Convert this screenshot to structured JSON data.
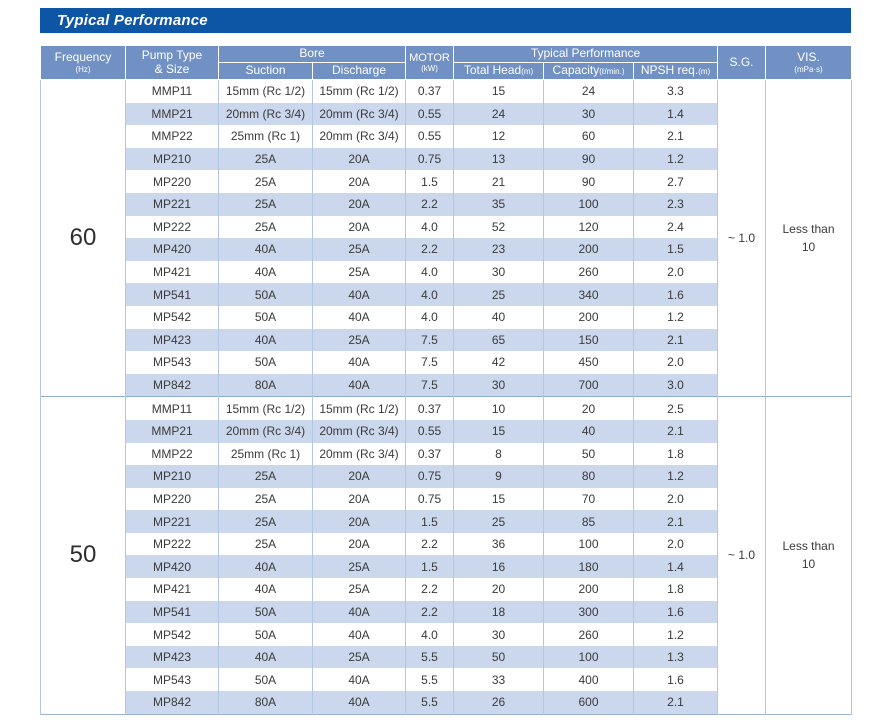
{
  "title": "Typical Performance",
  "colors": {
    "title_bar": "#0d55a5",
    "header_blue": "#7191c4",
    "alt_row": "#cbd7ec",
    "border": "#b3c6e2",
    "text": "#3a3a3a"
  },
  "table": {
    "headers": {
      "frequency": "Frequency",
      "frequency_unit": "(Hz)",
      "pump_type_line1": "Pump Type",
      "pump_type_line2": "& Size",
      "bore": "Bore",
      "suction": "Suction",
      "discharge": "Discharge",
      "motor": "MOTOR",
      "motor_unit": "(kW)",
      "typical_performance": "Typical Performance",
      "total_head": "Total Head",
      "total_head_unit": "(m)",
      "capacity": "Capacity",
      "capacity_unit": "(ℓ/min.)",
      "npsh": "NPSH req.",
      "npsh_unit": "(m)",
      "sg": "S.G.",
      "vis": "VIS.",
      "vis_unit": "(mPa·s)"
    },
    "sections": [
      {
        "frequency": "60",
        "sg": "~ 1.0",
        "vis_line1": "Less than",
        "vis_line2": "10",
        "rows": [
          [
            "MMP11",
            "15mm (Rc 1/2)",
            "15mm (Rc 1/2)",
            "0.37",
            "15",
            "24",
            "3.3"
          ],
          [
            "MMP21",
            "20mm (Rc 3/4)",
            "20mm (Rc 3/4)",
            "0.55",
            "24",
            "30",
            "1.4"
          ],
          [
            "MMP22",
            "25mm (Rc 1)",
            "20mm (Rc 3/4)",
            "0.55",
            "12",
            "60",
            "2.1"
          ],
          [
            "MP210",
            "25A",
            "20A",
            "0.75",
            "13",
            "90",
            "1.2"
          ],
          [
            "MP220",
            "25A",
            "20A",
            "1.5",
            "21",
            "90",
            "2.7"
          ],
          [
            "MP221",
            "25A",
            "20A",
            "2.2",
            "35",
            "100",
            "2.3"
          ],
          [
            "MP222",
            "25A",
            "20A",
            "4.0",
            "52",
            "120",
            "2.4"
          ],
          [
            "MP420",
            "40A",
            "25A",
            "2.2",
            "23",
            "200",
            "1.5"
          ],
          [
            "MP421",
            "40A",
            "25A",
            "4.0",
            "30",
            "260",
            "2.0"
          ],
          [
            "MP541",
            "50A",
            "40A",
            "4.0",
            "25",
            "340",
            "1.6"
          ],
          [
            "MP542",
            "50A",
            "40A",
            "4.0",
            "40",
            "200",
            "1.2"
          ],
          [
            "MP423",
            "40A",
            "25A",
            "7.5",
            "65",
            "150",
            "2.1"
          ],
          [
            "MP543",
            "50A",
            "40A",
            "7.5",
            "42",
            "450",
            "2.0"
          ],
          [
            "MP842",
            "80A",
            "40A",
            "7.5",
            "30",
            "700",
            "3.0"
          ]
        ]
      },
      {
        "frequency": "50",
        "sg": "~ 1.0",
        "vis_line1": "Less than",
        "vis_line2": "10",
        "rows": [
          [
            "MMP11",
            "15mm (Rc 1/2)",
            "15mm (Rc 1/2)",
            "0.37",
            "10",
            "20",
            "2.5"
          ],
          [
            "MMP21",
            "20mm (Rc 3/4)",
            "20mm (Rc 3/4)",
            "0.55",
            "15",
            "40",
            "2.1"
          ],
          [
            "MMP22",
            "25mm (Rc 1)",
            "20mm (Rc 3/4)",
            "0.37",
            "8",
            "50",
            "1.8"
          ],
          [
            "MP210",
            "25A",
            "20A",
            "0.75",
            "9",
            "80",
            "1.2"
          ],
          [
            "MP220",
            "25A",
            "20A",
            "0.75",
            "15",
            "70",
            "2.0"
          ],
          [
            "MP221",
            "25A",
            "20A",
            "1.5",
            "25",
            "85",
            "2.1"
          ],
          [
            "MP222",
            "25A",
            "20A",
            "2.2",
            "36",
            "100",
            "2.0"
          ],
          [
            "MP420",
            "40A",
            "25A",
            "1.5",
            "16",
            "180",
            "1.4"
          ],
          [
            "MP421",
            "40A",
            "25A",
            "2.2",
            "20",
            "200",
            "1.8"
          ],
          [
            "MP541",
            "50A",
            "40A",
            "2.2",
            "18",
            "300",
            "1.6"
          ],
          [
            "MP542",
            "50A",
            "40A",
            "4.0",
            "30",
            "260",
            "1.2"
          ],
          [
            "MP423",
            "40A",
            "25A",
            "5.5",
            "50",
            "100",
            "1.3"
          ],
          [
            "MP543",
            "50A",
            "40A",
            "5.5",
            "33",
            "400",
            "1.6"
          ],
          [
            "MP842",
            "80A",
            "40A",
            "5.5",
            "26",
            "600",
            "2.1"
          ]
        ]
      }
    ]
  }
}
